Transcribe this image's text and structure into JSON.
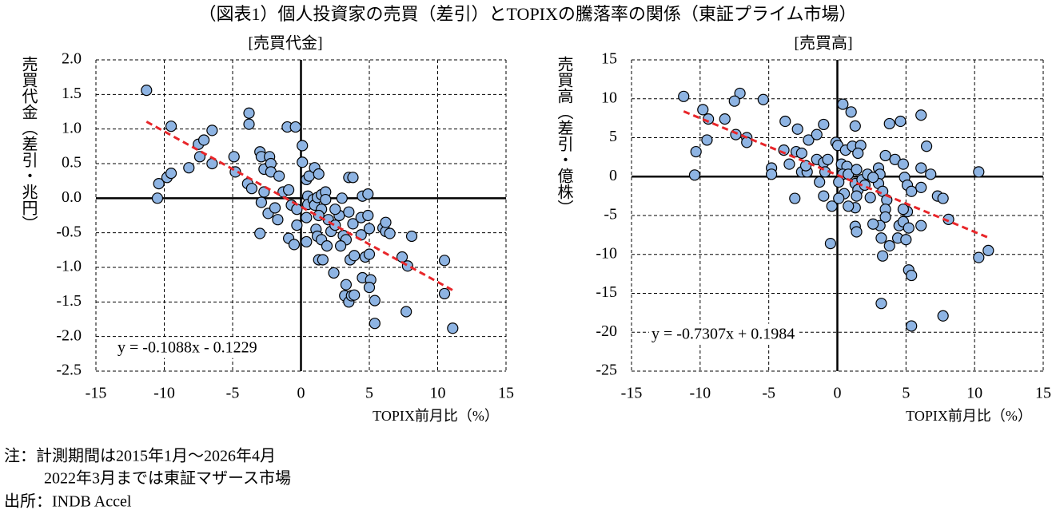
{
  "title": "（図表1）個人投資家の売買（差引）とTOPIXの騰落率の関係（東証プライム市場）",
  "chart_data": [
    {
      "type": "scatter",
      "subtitle": "[売買代金]",
      "y_label": "売買代金（差引・兆円）",
      "x_label": "TOPIX前月比（%）",
      "color": "#8eb4e3",
      "grid": true,
      "xlim": [
        -15,
        15
      ],
      "xticks": [
        -15,
        -10,
        -5,
        0,
        5,
        10,
        15
      ],
      "ylim": [
        -2.5,
        2
      ],
      "yticks": [
        {
          "value": -2.5,
          "label": "-2.5"
        },
        {
          "value": -2,
          "label": "-2.0"
        },
        {
          "value": -1.5,
          "label": "-1.5"
        },
        {
          "value": -1,
          "label": "-1.0"
        },
        {
          "value": -0.5,
          "label": "-0.5"
        },
        {
          "value": 0,
          "label": "0.0"
        },
        {
          "value": 0.5,
          "label": "0.5"
        },
        {
          "value": 1,
          "label": "1.0"
        },
        {
          "value": 1.5,
          "label": "1.5"
        },
        {
          "value": 2,
          "label": "2.0"
        }
      ],
      "trendline": {
        "slope": -0.1088,
        "intercept": -0.1229,
        "label": "y = -0.1088x - 0.1229",
        "color": "#e8262a"
      },
      "x": [
        -11.3,
        -9.5,
        -10.5,
        -10.4,
        -9.8,
        -9.5,
        -8.2,
        -7.5,
        -7.1,
        -6.5,
        -7.4,
        -6.5,
        -4.9,
        -4.8,
        -3.8,
        -3.8,
        -3.9,
        -3.6,
        -3.0,
        -2.9,
        -2.7,
        -2.3,
        -2.2,
        -2.2,
        -1.6,
        -2.7,
        -2.9,
        -2.4,
        -3.0,
        -1.9,
        -1.7,
        -1.3,
        -0.9,
        -1.0,
        -0.4,
        0.1,
        0.1,
        -0.7,
        -0.3,
        -0.9,
        -0.5,
        -0.3,
        0.4,
        0.6,
        1.0,
        1.3,
        0.5,
        0.5,
        0.4,
        0.4,
        0.9,
        1.0,
        1.2,
        1.5,
        1.8,
        1.5,
        1.3,
        1.1,
        1.2,
        1.5,
        1.3,
        1.6,
        1.8,
        2.0,
        2.2,
        2.5,
        1.9,
        2.8,
        3.0,
        3.1,
        3.3,
        2.9,
        2.4,
        3.5,
        3.8,
        3.5,
        3.8,
        3.6,
        3.9,
        3.3,
        3.2,
        3.5,
        3.7,
        3.9,
        4.5,
        4.9,
        4.4,
        4.9,
        5.0,
        4.7,
        5.0,
        4.5,
        5.1,
        5.0,
        5.4,
        5.4,
        6.0,
        6.2,
        6.5,
        6.2,
        7.4,
        7.8,
        8.1,
        7.7,
        10.5,
        10.5,
        11.1,
        4.4,
        2.5
      ],
      "values": [
        1.56,
        1.04,
        0.0,
        0.21,
        0.3,
        0.36,
        0.44,
        0.78,
        0.84,
        0.98,
        0.6,
        0.5,
        0.6,
        0.38,
        1.23,
        1.07,
        0.21,
        0.14,
        0.67,
        0.6,
        0.42,
        0.6,
        0.5,
        0.38,
        0.32,
        0.09,
        -0.06,
        -0.22,
        -0.51,
        -0.14,
        -0.31,
        0.09,
        0.12,
        1.03,
        1.03,
        0.76,
        0.52,
        -0.1,
        -0.16,
        -0.58,
        -0.67,
        -0.39,
        0.27,
        0.32,
        0.44,
        0.35,
        0.03,
        -0.09,
        -0.28,
        -0.63,
        -0.02,
        -0.1,
        0.01,
        0.05,
        0.09,
        -0.16,
        -0.25,
        -0.45,
        -0.55,
        -0.6,
        -0.89,
        -0.89,
        -0.02,
        -0.31,
        -0.48,
        -0.39,
        -0.69,
        -0.25,
        0.0,
        -0.54,
        -0.6,
        -0.69,
        -1.08,
        0.3,
        0.3,
        -0.2,
        -0.37,
        -0.89,
        -0.83,
        -1.25,
        -1.41,
        -1.5,
        -1.41,
        -1.4,
        0.03,
        0.06,
        -0.28,
        -0.25,
        -0.44,
        -0.85,
        -0.81,
        -1.15,
        -1.18,
        -1.29,
        -1.48,
        -1.81,
        -0.43,
        -0.48,
        -0.51,
        -0.35,
        -0.85,
        -0.98,
        -0.55,
        -1.64,
        -0.9,
        -1.38,
        -1.88,
        -0.53,
        -0.16
      ]
    },
    {
      "type": "scatter",
      "subtitle": "[売買高]",
      "y_label": "売買高（差引・億株）",
      "x_label": "TOPIX前月比（%）",
      "color": "#8eb4e3",
      "grid": true,
      "xlim": [
        -15,
        15
      ],
      "xticks": [
        -15,
        -10,
        -5,
        0,
        5,
        10,
        15
      ],
      "ylim": [
        -25,
        15
      ],
      "yticks": [
        -25,
        -20,
        -15,
        -10,
        -5,
        0,
        5,
        10,
        15
      ],
      "trendline": {
        "slope": -0.7307,
        "intercept": 0.1984,
        "label": "y = -0.7307x + 0.1984",
        "color": "#e8262a"
      },
      "x": [
        -11.2,
        -7.1,
        -7.5,
        -9.8,
        -9.4,
        -8.2,
        -10.3,
        -9.5,
        -10.4,
        -7.4,
        -6.6,
        -6.6,
        -5.4,
        -4.8,
        -4.8,
        -3.8,
        -2.9,
        -3.9,
        -3.5,
        -3.0,
        -2.6,
        -2.1,
        -1.5,
        -1.0,
        -2.6,
        -2.2,
        -2.3,
        -1.5,
        -1.0,
        -0.7,
        -3.1,
        -1.0,
        -0.4,
        -0.5,
        -0.9,
        -1.3,
        -0.1,
        0.03,
        0.4,
        1.0,
        1.3,
        0.6,
        1.1,
        1.7,
        1.5,
        0.3,
        0.7,
        0.4,
        0.8,
        1.4,
        0.1,
        0.5,
        0.1,
        1.3,
        1.5,
        1.4,
        1.3,
        1.3,
        1.4,
        1.8,
        2.0,
        2.4,
        3.0,
        2.9,
        3.1,
        3.0,
        3.3,
        3.5,
        3.8,
        4.6,
        3.6,
        3.5,
        3.5,
        3.1,
        2.6,
        3.2,
        3.3,
        3.2,
        4.5,
        4.4,
        3.8,
        5.1,
        4.8,
        5.0,
        5.2,
        5.2,
        5.4,
        5.4,
        4.2,
        4.8,
        4.9,
        5.1,
        5.4,
        4.8,
        6.1,
        6.1,
        6.1,
        6.5,
        6.8,
        6.1,
        7.3,
        7.7,
        7.7,
        8.1,
        10.3,
        10.3,
        11.0,
        2.2,
        2.6,
        0.8
      ],
      "values": [
        10.3,
        10.7,
        9.7,
        8.6,
        7.4,
        7.4,
        3.2,
        4.7,
        0.2,
        5.4,
        5.0,
        4.4,
        9.9,
        1.1,
        0.3,
        7.1,
        6.1,
        3.4,
        1.6,
        3.2,
        3.0,
        4.7,
        5.4,
        6.7,
        0.6,
        0.6,
        1.4,
        2.2,
        1.8,
        2.2,
        -2.8,
        -2.5,
        -3.8,
        -8.6,
        0.6,
        -0.7,
        4.4,
        4.0,
        9.3,
        8.3,
        6.5,
        3.4,
        3.9,
        4.0,
        3.0,
        1.6,
        1.3,
        0.3,
        0.3,
        0.9,
        -0.7,
        -2.2,
        -2.8,
        -0.9,
        -1.7,
        -2.5,
        -4.0,
        -6.4,
        -7.1,
        -0.4,
        -1.1,
        -2.7,
        1.1,
        -0.1,
        0.3,
        -0.9,
        -1.9,
        2.7,
        6.8,
        7.1,
        -3.0,
        -4.2,
        -5.2,
        -6.3,
        -6.1,
        -7.9,
        -10.2,
        -16.3,
        -6.3,
        -7.9,
        -8.9,
        -4.5,
        -5.8,
        -8.1,
        -6.6,
        -12.0,
        -12.7,
        -19.2,
        2.2,
        1.6,
        -0.1,
        -1.1,
        -1.9,
        -4.2,
        -1.4,
        1.1,
        7.9,
        3.9,
        0.3,
        -6.3,
        -2.5,
        -2.8,
        -17.9,
        -5.5,
        0.6,
        -10.4,
        -9.5,
        0.3,
        -0.1,
        -3.8
      ]
    }
  ],
  "notes": [
    "注：計測期間は2015年1月～2026年4月",
    "2022年3月までは東証マザース市場",
    "出所：INDB Accel"
  ]
}
